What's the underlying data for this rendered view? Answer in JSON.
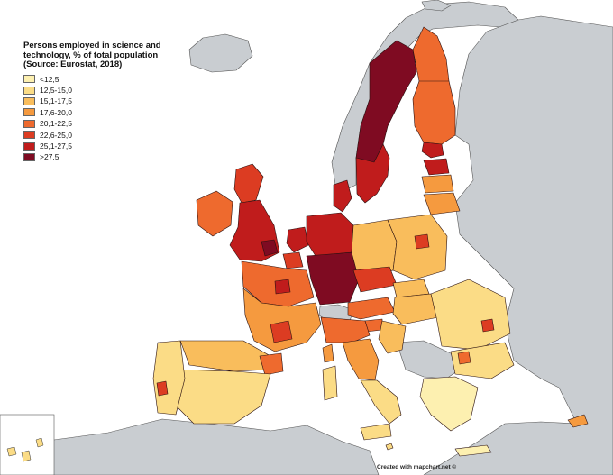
{
  "legend": {
    "title_lines": [
      "Persons employed in science and",
      "technology, % of total population",
      "(Source: Eurostat, 2018)"
    ],
    "items": [
      {
        "label": "<12,5",
        "color": "#fdf0b0"
      },
      {
        "label": "12,5-15,0",
        "color": "#fbdc86"
      },
      {
        "label": "15,1-17,5",
        "color": "#f9bd5c"
      },
      {
        "label": "17,6-20,0",
        "color": "#f59a3f"
      },
      {
        "label": "20,1-22,5",
        "color": "#ee6a2e"
      },
      {
        "label": "22,6-25,0",
        "color": "#dc3c22"
      },
      {
        "label": "25,1-27,5",
        "color": "#c01c1c"
      },
      {
        "label": ">27,5",
        "color": "#7f0b22"
      }
    ]
  },
  "credit": "Created with mapchart.net ©",
  "colors": {
    "background": "#ffffff",
    "non_eu_land": "#c9cdd1",
    "border": "#222222"
  }
}
